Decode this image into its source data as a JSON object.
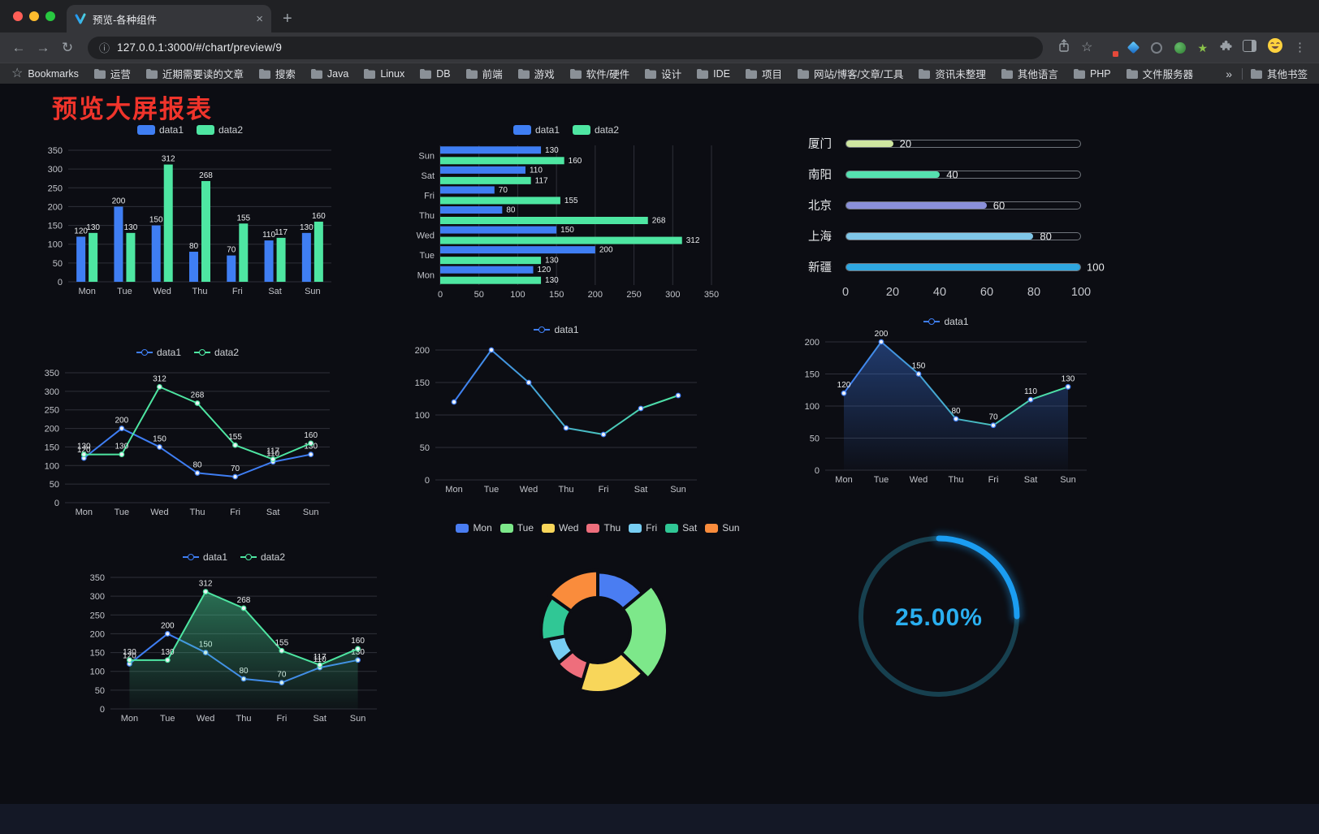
{
  "browser": {
    "tab_title": "预览-各种组件",
    "url": "127.0.0.1:3000/#/chart/preview/9",
    "bookmarks_bar": {
      "root_label": "Bookmarks",
      "items": [
        "运营",
        "近期需要读的文章",
        "搜索",
        "Java",
        "Linux",
        "DB",
        "前端",
        "游戏",
        "软件/硬件",
        "设计",
        "IDE",
        "项目",
        "网站/博客/文章/工具",
        "资讯未整理",
        "其他语言",
        "PHP",
        "文件服务器"
      ],
      "overflow": "»",
      "other_bookmarks": "其他书签"
    }
  },
  "icons": {
    "back": "←",
    "forward": "→",
    "reload": "↻",
    "plus": "+",
    "close": "×",
    "info": "ⓘ",
    "star": "☆",
    "kebab": "⋮",
    "green_star": "★"
  },
  "page": {
    "title": "预览大屏报表",
    "title_color": "#f0342b",
    "background": "#0c0d13"
  },
  "palette": {
    "blue": "#3f7ef3",
    "green": "#4ee6a2"
  },
  "chart_data": [
    {
      "id": "bar-grouped",
      "type": "bar",
      "categories": [
        "Mon",
        "Tue",
        "Wed",
        "Thu",
        "Fri",
        "Sat",
        "Sun"
      ],
      "series": [
        {
          "name": "data1",
          "color": "#3f7ef3",
          "values": [
            120,
            200,
            150,
            80,
            70,
            110,
            130
          ]
        },
        {
          "name": "data2",
          "color": "#4ee6a2",
          "values": [
            130,
            130,
            312,
            268,
            155,
            117,
            160
          ]
        }
      ],
      "ylim": [
        0,
        350
      ],
      "ytick": 50,
      "legend_style": "pill",
      "grid": true
    },
    {
      "id": "bar-horizontal",
      "type": "hbar",
      "categories": [
        "Mon",
        "Tue",
        "Wed",
        "Thu",
        "Fri",
        "Sat",
        "Sun"
      ],
      "category_order_top_to_bottom": [
        "Sun",
        "Sat",
        "Fri",
        "Thu",
        "Wed",
        "Tue",
        "Mon"
      ],
      "series": [
        {
          "name": "data1",
          "color": "#3f7ef3",
          "values": [
            120,
            200,
            150,
            80,
            70,
            110,
            130
          ]
        },
        {
          "name": "data2",
          "color": "#4ee6a2",
          "values": [
            130,
            130,
            312,
            268,
            155,
            117,
            160
          ]
        }
      ],
      "xlim": [
        0,
        350
      ],
      "xtick": 50,
      "legend_style": "pill",
      "grid": true
    },
    {
      "id": "capsule",
      "type": "capsule",
      "max": 100,
      "items": [
        {
          "label": "厦门",
          "value": 20,
          "color": "#cfe6a0"
        },
        {
          "label": "南阳",
          "value": 40,
          "color": "#55e0b0"
        },
        {
          "label": "北京",
          "value": 60,
          "color": "#8a90d9"
        },
        {
          "label": "上海",
          "value": 80,
          "color": "#7fc6e8"
        },
        {
          "label": "新疆",
          "value": 100,
          "color": "#2fa7e0"
        }
      ],
      "axis_ticks": [
        0,
        20,
        40,
        60,
        80,
        100
      ]
    },
    {
      "id": "line-two",
      "type": "line",
      "categories": [
        "Mon",
        "Tue",
        "Wed",
        "Thu",
        "Fri",
        "Sat",
        "Sun"
      ],
      "series": [
        {
          "name": "data1",
          "color": "#3f7ef3",
          "values": [
            120,
            200,
            150,
            80,
            70,
            110,
            130
          ],
          "labels": true
        },
        {
          "name": "data2",
          "color": "#4ee6a2",
          "values": [
            130,
            130,
            312,
            268,
            155,
            117,
            160
          ],
          "labels": true
        }
      ],
      "ylim": [
        0,
        350
      ],
      "ytick": 50,
      "legend_style": "linedot",
      "markers": true
    },
    {
      "id": "line-gradient",
      "type": "line",
      "categories": [
        "Mon",
        "Tue",
        "Wed",
        "Thu",
        "Fri",
        "Sat",
        "Sun"
      ],
      "series": [
        {
          "name": "data1",
          "color": "#3f7ef3",
          "gradient": [
            "#3f7ef3",
            "#4ee6a2"
          ],
          "values": [
            120,
            200,
            150,
            80,
            70,
            110,
            130
          ],
          "labels": false
        }
      ],
      "ylim": [
        0,
        200
      ],
      "ytick": 50,
      "legend_style": "linedot",
      "markers": true
    },
    {
      "id": "line-area",
      "type": "line",
      "categories": [
        "Mon",
        "Tue",
        "Wed",
        "Thu",
        "Fri",
        "Sat",
        "Sun"
      ],
      "series": [
        {
          "name": "data1",
          "color": "#3f7ef3",
          "gradient": [
            "#3f7ef3",
            "#4ee6a2"
          ],
          "values": [
            120,
            200,
            150,
            80,
            70,
            110,
            130
          ],
          "labels": true,
          "area": {
            "from": "rgba(63,126,243,0.40)",
            "to": "rgba(63,126,243,0.02)"
          }
        }
      ],
      "ylim": [
        0,
        200
      ],
      "ytick": 50,
      "legend_style": "linedot",
      "markers": true
    },
    {
      "id": "line-area-two",
      "type": "line",
      "categories": [
        "Mon",
        "Tue",
        "Wed",
        "Thu",
        "Fri",
        "Sat",
        "Sun"
      ],
      "series": [
        {
          "name": "data1",
          "color": "#3f7ef3",
          "values": [
            120,
            200,
            150,
            80,
            70,
            110,
            130
          ],
          "labels": true
        },
        {
          "name": "data2",
          "color": "#4ee6a2",
          "values": [
            130,
            130,
            312,
            268,
            155,
            117,
            160
          ],
          "labels": true,
          "area": {
            "from": "rgba(78,230,162,0.45)",
            "to": "rgba(78,230,162,0.03)"
          }
        }
      ],
      "ylim": [
        0,
        350
      ],
      "ytick": 50,
      "legend_style": "linedot",
      "markers": true
    },
    {
      "id": "pie-rose",
      "type": "pie",
      "subtype": "rose-donut",
      "items": [
        {
          "name": "Mon",
          "value": 120,
          "color": "#4a7df2"
        },
        {
          "name": "Tue",
          "value": 200,
          "color": "#7de88a"
        },
        {
          "name": "Wed",
          "value": 150,
          "color": "#f8d65a"
        },
        {
          "name": "Thu",
          "value": 80,
          "color": "#ee6e7c"
        },
        {
          "name": "Fri",
          "value": 70,
          "color": "#77cdf2"
        },
        {
          "name": "Sat",
          "value": 110,
          "color": "#30c795"
        },
        {
          "name": "Sun",
          "value": 130,
          "color": "#fa8c3c"
        }
      ],
      "legend_style": "pill"
    },
    {
      "id": "gauge",
      "type": "gauge",
      "value": 25,
      "max": 100,
      "display": "25.00%",
      "color": "#1b9df2",
      "track_color": "#17404f",
      "text_color": "#2aaff0"
    }
  ]
}
